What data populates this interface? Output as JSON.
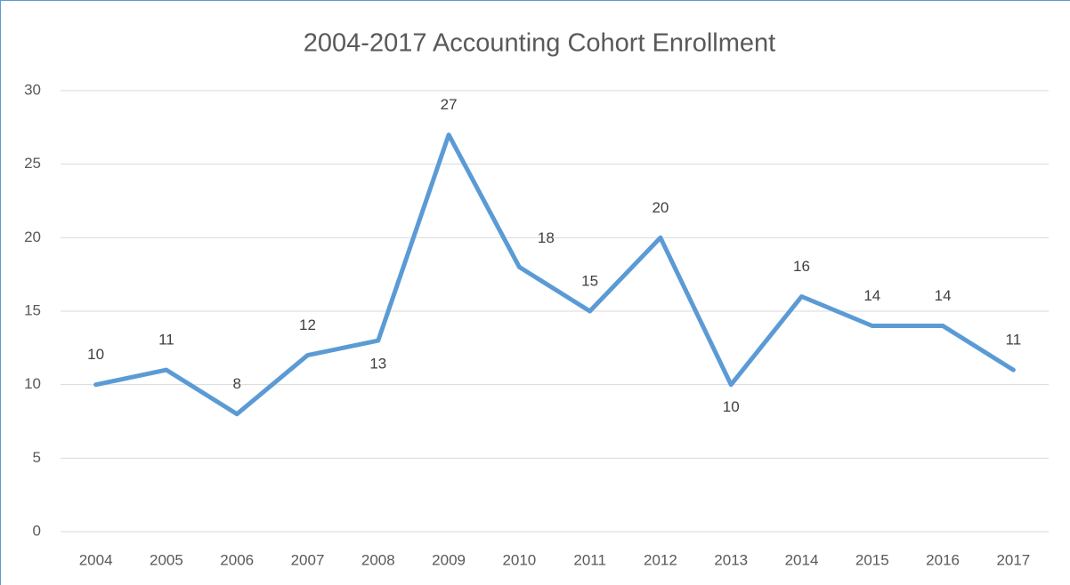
{
  "chart_data": {
    "type": "line",
    "title": "2004-2017 Accounting Cohort Enrollment",
    "categories": [
      "2004",
      "2005",
      "2006",
      "2007",
      "2008",
      "2009",
      "2010",
      "2011",
      "2012",
      "2013",
      "2014",
      "2015",
      "2016",
      "2017"
    ],
    "values": [
      10,
      11,
      8,
      12,
      13,
      27,
      18,
      15,
      20,
      10,
      16,
      14,
      14,
      11
    ],
    "color": "#5b9bd5",
    "ylim": [
      0,
      30
    ],
    "yticks": [
      0,
      5,
      10,
      15,
      20,
      25,
      30
    ],
    "grid": true
  }
}
